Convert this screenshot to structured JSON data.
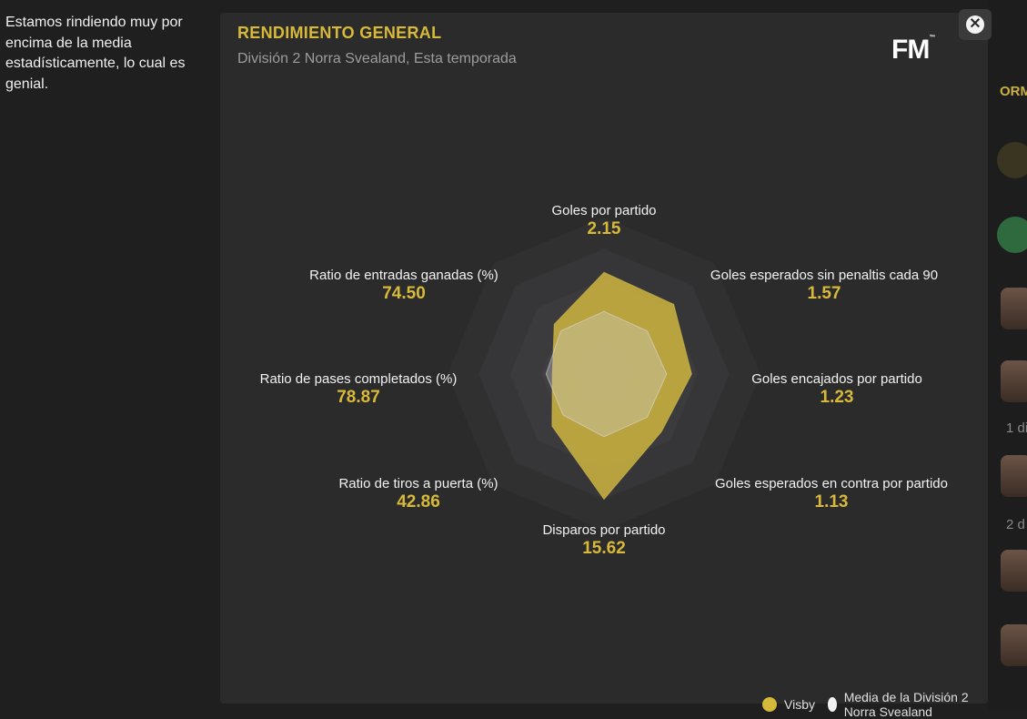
{
  "tooltip": {
    "text": "Estamos rindiendo muy por encima de la media estadísticamente, lo cual es genial."
  },
  "panel": {
    "title": "RENDIMIENTO GENERAL",
    "subtitle": "División 2  Norra Svealand, Esta temporada",
    "logo": "FM",
    "close_icon": "close-icon"
  },
  "right_strip": {
    "title_fragment": "ORM",
    "text_a": "1 di",
    "text_b": "2 d"
  },
  "colors": {
    "accent": "#d8b93a",
    "team_fill": "#c9b240",
    "average_fill": "#d2d2d2",
    "panel_bg": "#2b2b2b"
  },
  "chart_data": {
    "type": "radar",
    "title": "RENDIMIENTO GENERAL",
    "axes": [
      {
        "label": "Goles por partido",
        "value": "2.15"
      },
      {
        "label": "Goles esperados sin penaltis cada 90",
        "value": "1.57"
      },
      {
        "label": "Goles encajados por partido",
        "value": "1.23"
      },
      {
        "label": "Goles esperados en contra por partido",
        "value": "1.13"
      },
      {
        "label": "Disparos por partido",
        "value": "15.62"
      },
      {
        "label": "Ratio de tiros a puerta (%)",
        "value": "42.86"
      },
      {
        "label": "Ratio de pases completados (%)",
        "value": "78.87"
      },
      {
        "label": "Ratio de entradas ganadas (%)",
        "value": "74.50"
      }
    ],
    "series": [
      {
        "name": "Visby",
        "normalized": [
          0.65,
          0.63,
          0.56,
          0.52,
          0.8,
          0.47,
          0.33,
          0.45
        ]
      },
      {
        "name": "Media de la División 2  Norra Svealand",
        "normalized": [
          0.4,
          0.39,
          0.4,
          0.39,
          0.4,
          0.37,
          0.37,
          0.39
        ]
      }
    ],
    "rings": 5,
    "legend": [
      "Visby",
      "Media de la División 2  Norra Svealand"
    ]
  }
}
